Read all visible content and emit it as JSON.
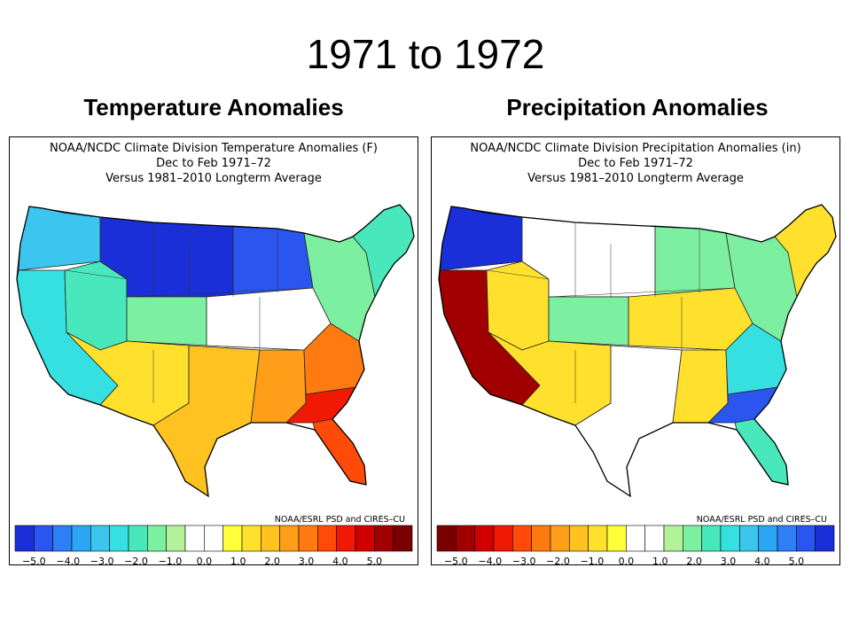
{
  "slide_title": "1971 to 1972",
  "panels": [
    {
      "heading": "Temperature Anomalies",
      "header_lines": [
        "NOAA/NCDC Climate Division Temperature Anomalies (F)",
        "Dec to Feb 1971–72",
        "Versus 1981–2010 Longterm Average"
      ],
      "credit": "NOAA/ESRL PSD and CIRES–CU",
      "colorbar_colors": [
        "#1a2fd8",
        "#2a55ee",
        "#2e7ff5",
        "#2aa6f5",
        "#3cc6ef",
        "#36e0e0",
        "#48e8bc",
        "#7cf0a0",
        "#b4f29a",
        "#ffffff",
        "#ffffff",
        "#ffff3a",
        "#ffe02c",
        "#ffc220",
        "#ff9e18",
        "#ff7a10",
        "#ff4a0a",
        "#f01a04",
        "#d00000",
        "#a00000",
        "#7a0000"
      ],
      "tick_labels": [
        "−5.0",
        "−4.0",
        "−3.0",
        "−2.0",
        "−1.0",
        "0.0",
        "1.0",
        "2.0",
        "3.0",
        "4.0",
        "5.0"
      ],
      "region_colors": {
        "pacific_nw": "#3cc6ef",
        "northern_plains": "#1a2fd8",
        "upper_midwest": "#2a55ee",
        "great_basin": "#48e8bc",
        "rockies": "#7cf0a0",
        "central": "#ffffff",
        "southwest": "#ffe02c",
        "texas": "#ffc220",
        "southern_plains": "#ff9e18",
        "ohio_valley": "#ff7a10",
        "southeast": "#f01a04",
        "florida": "#ff4a0a",
        "northeast": "#7cf0a0",
        "new_england": "#48e8bc",
        "california": "#36e0e0"
      }
    },
    {
      "heading": "Precipitation Anomalies",
      "header_lines": [
        "NOAA/NCDC Climate Division Precipitation Anomalies (in)",
        "Dec to Feb 1971–72",
        "Versus 1981–2010 Longterm Average"
      ],
      "credit": "NOAA/ESRL PSD and CIRES–CU",
      "colorbar_colors": [
        "#7a0000",
        "#a00000",
        "#d00000",
        "#f01a04",
        "#ff4a0a",
        "#ff7a10",
        "#ff9e18",
        "#ffc220",
        "#ffe02c",
        "#ffff3a",
        "#ffffff",
        "#ffffff",
        "#b4f29a",
        "#7cf0a0",
        "#48e8bc",
        "#36e0e0",
        "#3cc6ef",
        "#2aa6f5",
        "#2e7ff5",
        "#2a55ee",
        "#1a2fd8"
      ],
      "tick_labels": [
        "−5.0",
        "−4.0",
        "−3.0",
        "−2.0",
        "−1.0",
        "0.0",
        "1.0",
        "2.0",
        "3.0",
        "4.0",
        "5.0"
      ],
      "region_colors": {
        "pacific_nw": "#1a2fd8",
        "northern_plains": "#ffffff",
        "upper_midwest": "#7cf0a0",
        "great_basin": "#ffe02c",
        "rockies": "#7cf0a0",
        "central": "#ffe02c",
        "southwest": "#ffe02c",
        "texas": "#ffffff",
        "southern_plains": "#ffe02c",
        "ohio_valley": "#36e0e0",
        "southeast": "#2a55ee",
        "florida": "#48e8bc",
        "northeast": "#7cf0a0",
        "new_england": "#ffe02c",
        "california": "#a00000"
      }
    }
  ]
}
